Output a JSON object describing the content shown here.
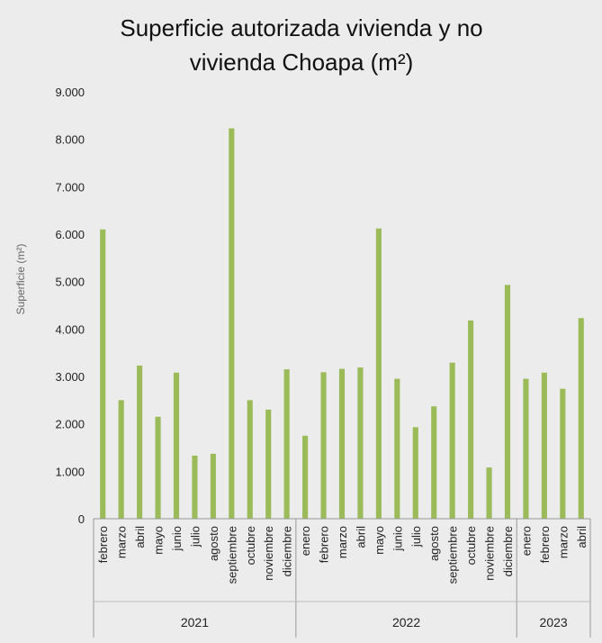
{
  "chart_data": {
    "type": "bar",
    "title_lines": [
      "Superficie autorizada vivienda y no",
      "vivienda Choapa (m²)"
    ],
    "ylabel": "Superficie (m²)",
    "ylim": [
      0,
      9000
    ],
    "yticks": [
      "0",
      "1.000",
      "2.000",
      "3.000",
      "4.000",
      "5.000",
      "6.000",
      "7.000",
      "8.000",
      "9.000"
    ],
    "bar_color": "#9bbb59",
    "grid": false,
    "groups": [
      {
        "year": "2021",
        "categories": [
          "febrero",
          "marzo",
          "abril",
          "mayo",
          "junio",
          "julio",
          "agosto",
          "septiembre",
          "octubre",
          "noviembre",
          "diciembre"
        ],
        "values": [
          6100,
          2500,
          3230,
          2150,
          3080,
          1330,
          1370,
          8230,
          2500,
          2300,
          3150
        ]
      },
      {
        "year": "2022",
        "categories": [
          "enero",
          "febrero",
          "marzo",
          "abril",
          "mayo",
          "junio",
          "julio",
          "agosto",
          "septiembre",
          "octubre",
          "noviembre",
          "diciembre"
        ],
        "values": [
          1750,
          3090,
          3160,
          3190,
          6120,
          2950,
          1930,
          2370,
          3290,
          4180,
          1080,
          4930
        ]
      },
      {
        "year": "2023",
        "categories": [
          "enero",
          "febrero",
          "marzo",
          "abril"
        ],
        "values": [
          2950,
          3080,
          2740,
          4230
        ]
      }
    ]
  }
}
